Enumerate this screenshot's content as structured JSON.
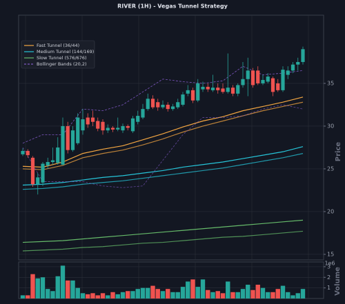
{
  "chart_data": [
    {
      "type": "candlestick",
      "title": "RIVER (1H) - Vegas Tunnel Strategy",
      "ylabel": "Price",
      "ylim": [
        14.35,
        42.98
      ],
      "yticks": [
        15,
        20,
        25,
        30,
        35
      ],
      "grid": true,
      "legend": "upper left",
      "up_color": "#26a69a",
      "down_color": "#ef5350",
      "open": [
        26.7,
        27.1,
        26.3,
        23.2,
        23.4,
        25.4,
        25.8,
        25.7,
        25.5,
        30.0,
        27.2,
        28.0,
        29.5,
        31.0,
        31.0,
        30.6,
        30.5,
        29.5,
        29.8,
        29.6,
        29.5,
        30.0,
        29.4,
        30.5,
        31.0,
        32.0,
        33.2,
        32.8,
        32.2,
        32.5,
        32.0,
        32.2,
        32.5,
        33.8,
        34.2,
        33.0,
        34.3,
        34.6,
        34.2,
        34.5,
        34.4,
        34.0,
        34.5,
        33.8,
        34.8,
        35.5,
        36.5,
        36.5,
        35.0,
        35.2,
        35.6,
        35.0,
        34.2,
        36.0,
        36.5,
        37.2,
        37.5
      ],
      "high": [
        27.4,
        27.3,
        26.5,
        24.5,
        25.8,
        26.3,
        27.5,
        28.7,
        31.0,
        30.5,
        30.0,
        31.5,
        32.0,
        31.5,
        31.8,
        31.0,
        30.8,
        30.2,
        30.0,
        31.0,
        30.3,
        30.2,
        31.2,
        31.8,
        32.6,
        33.8,
        33.6,
        33.2,
        33.0,
        32.8,
        32.6,
        33.2,
        34.0,
        34.8,
        34.5,
        35.5,
        35.2,
        35.0,
        36.0,
        35.0,
        35.0,
        38.5,
        34.8,
        35.0,
        37.5,
        38.0,
        36.8,
        37.0,
        36.0,
        36.2,
        35.8,
        35.5,
        37.0,
        37.0,
        37.5,
        38.0,
        39.3
      ],
      "low": [
        26.5,
        26.3,
        22.9,
        22.0,
        23.0,
        25.0,
        25.5,
        25.5,
        25.4,
        26.8,
        27.0,
        27.8,
        29.0,
        29.8,
        30.0,
        29.4,
        29.0,
        29.2,
        29.3,
        29.4,
        29.2,
        29.5,
        29.2,
        30.2,
        30.8,
        31.8,
        32.0,
        31.8,
        32.0,
        31.7,
        31.8,
        32.0,
        32.3,
        33.5,
        32.7,
        32.8,
        34.0,
        34.0,
        34.0,
        33.8,
        33.8,
        33.8,
        33.5,
        33.5,
        34.5,
        33.5,
        34.5,
        34.8,
        34.8,
        35.0,
        33.5,
        34.0,
        34.0,
        35.5,
        36.2,
        36.5,
        37.2
      ],
      "close": [
        27.1,
        26.6,
        23.2,
        24.0,
        25.6,
        25.8,
        26.0,
        27.5,
        30.0,
        27.2,
        29.5,
        31.0,
        30.8,
        30.2,
        30.5,
        29.7,
        29.5,
        29.8,
        29.6,
        29.8,
        30.0,
        29.8,
        30.9,
        31.2,
        32.0,
        33.2,
        32.2,
        32.2,
        32.5,
        32.0,
        32.3,
        32.8,
        33.7,
        34.2,
        33.0,
        35.0,
        34.6,
        34.3,
        34.5,
        34.2,
        34.0,
        34.5,
        33.8,
        34.8,
        35.5,
        36.5,
        34.8,
        35.0,
        35.4,
        35.8,
        34.0,
        34.2,
        36.6,
        36.5,
        37.2,
        37.5,
        39.0
      ],
      "series": [
        {
          "name": "Fast Tunnel (36/44)",
          "color": "#f5a742",
          "x": [
            0,
            4,
            8,
            12,
            16,
            20,
            24,
            28,
            32,
            36,
            40,
            44,
            48,
            52,
            56
          ],
          "values": [
            25.3,
            25.2,
            25.8,
            26.8,
            27.3,
            27.7,
            28.4,
            29.1,
            29.9,
            30.6,
            31.1,
            31.8,
            32.3,
            32.8,
            33.4
          ],
          "lower": [
            25.0,
            24.9,
            25.4,
            26.3,
            26.8,
            27.2,
            27.8,
            28.5,
            29.3,
            30.0,
            30.6,
            31.2,
            31.8,
            32.3,
            32.8
          ]
        },
        {
          "name": "Medium Tunnel (144/169)",
          "color": "#26c6da",
          "x": [
            0,
            4,
            8,
            12,
            16,
            20,
            24,
            28,
            32,
            36,
            40,
            44,
            48,
            52,
            56
          ],
          "values": [
            23.1,
            23.2,
            23.4,
            23.7,
            24.0,
            24.2,
            24.5,
            24.8,
            25.2,
            25.5,
            25.8,
            26.2,
            26.6,
            27.0,
            27.6
          ],
          "lower": [
            22.6,
            22.7,
            22.9,
            23.2,
            23.4,
            23.6,
            23.9,
            24.2,
            24.5,
            24.8,
            25.1,
            25.5,
            25.9,
            26.3,
            26.8
          ]
        },
        {
          "name": "Slow Tunnel (576/676)",
          "color": "#66bb6a",
          "x": [
            0,
            4,
            8,
            12,
            16,
            20,
            24,
            28,
            32,
            36,
            40,
            44,
            48,
            52,
            56
          ],
          "values": [
            16.4,
            16.5,
            16.6,
            16.8,
            17.0,
            17.2,
            17.4,
            17.6,
            17.8,
            18.0,
            18.2,
            18.4,
            18.6,
            18.8,
            19.0
          ],
          "lower": [
            15.4,
            15.5,
            15.6,
            15.8,
            15.9,
            16.1,
            16.3,
            16.4,
            16.6,
            16.8,
            17.0,
            17.1,
            17.3,
            17.5,
            17.7
          ]
        },
        {
          "name": "Bollinger Bands (20,2)",
          "color": "#7e57c2",
          "style": "dashed",
          "x": [
            0,
            4,
            8,
            12,
            16,
            20,
            24,
            28,
            32,
            36,
            40,
            44,
            48,
            52,
            56
          ],
          "values": [
            28.0,
            29.0,
            29.0,
            32.0,
            31.8,
            32.5,
            34.0,
            35.5,
            35.2,
            35.0,
            35.3,
            37.0,
            36.0,
            36.2,
            36.5
          ],
          "lower": [
            27.5,
            23.5,
            23.5,
            23.5,
            23.0,
            22.8,
            23.0,
            26.0,
            29.0,
            31.0,
            31.0,
            31.2,
            32.0,
            32.5,
            32.0
          ]
        }
      ]
    },
    {
      "type": "bar",
      "ylabel": "Volume",
      "offset_label": "1e6",
      "ylim": [
        0,
        3.45
      ],
      "yticks": [
        1,
        2,
        3
      ],
      "values": [
        0.3,
        0.3,
        2.3,
        1.9,
        2.0,
        0.9,
        0.7,
        2.1,
        3.1,
        1.7,
        1.7,
        1.0,
        0.5,
        0.4,
        0.5,
        0.3,
        0.5,
        0.3,
        0.6,
        0.4,
        0.6,
        0.7,
        0.7,
        0.9,
        1.0,
        1.0,
        1.2,
        0.9,
        0.7,
        0.9,
        0.6,
        0.6,
        1.1,
        1.6,
        1.8,
        1.1,
        1.8,
        0.8,
        0.6,
        0.7,
        0.5,
        1.6,
        0.6,
        0.6,
        0.9,
        1.3,
        0.8,
        1.3,
        1.0,
        0.6,
        0.6,
        0.9,
        1.2,
        0.6,
        0.3,
        0.5,
        0.9
      ]
    }
  ]
}
